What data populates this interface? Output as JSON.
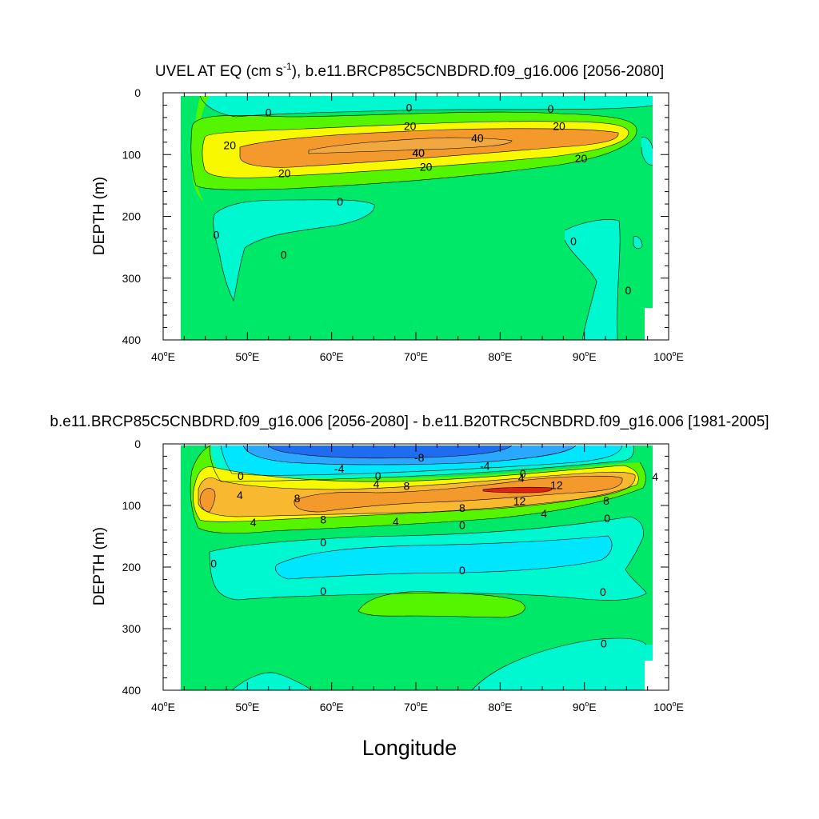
{
  "chart_data": [
    {
      "type": "contour",
      "title_main": "UVEL AT EQ (cm s",
      "title_sup": "-1",
      "title_rest": "), b.e11.BRCP85C5CNBDRD.f09_g16.006 [2056-2080]",
      "ylabel": "DEPTH (m)",
      "xlabel": "",
      "xlim": [
        40,
        100
      ],
      "ylim": [
        0,
        400
      ],
      "x_ticks": [
        40,
        50,
        60,
        70,
        80,
        90,
        100
      ],
      "x_tick_labels": [
        "40",
        "50",
        "60",
        "70",
        "80",
        "90",
        "100"
      ],
      "y_ticks": [
        0,
        100,
        200,
        300,
        400
      ],
      "y_tick_labels": [
        "0",
        "100",
        "200",
        "300",
        "400"
      ],
      "contour_labels": [
        {
          "text": "0",
          "lon": 52.5,
          "depth": 32
        },
        {
          "text": "0",
          "lon": 69.2,
          "depth": 24
        },
        {
          "text": "0",
          "lon": 86.0,
          "depth": 26
        },
        {
          "text": "20",
          "lon": 69.3,
          "depth": 54
        },
        {
          "text": "20",
          "lon": 87.0,
          "depth": 54
        },
        {
          "text": "20",
          "lon": 47.9,
          "depth": 85
        },
        {
          "text": "40",
          "lon": 77.3,
          "depth": 73
        },
        {
          "text": "40",
          "lon": 70.3,
          "depth": 97
        },
        {
          "text": "40",
          "lon": 70.3,
          "depth": 97
        },
        {
          "text": "20",
          "lon": 89.6,
          "depth": 106
        },
        {
          "text": "20",
          "lon": 71.2,
          "depth": 120
        },
        {
          "text": "20",
          "lon": 54.4,
          "depth": 130
        },
        {
          "text": "0",
          "lon": 61.0,
          "depth": 176
        },
        {
          "text": "0",
          "lon": 46.3,
          "depth": 230
        },
        {
          "text": "0",
          "lon": 54.3,
          "depth": 262
        },
        {
          "text": "0",
          "lon": 88.7,
          "depth": 240
        },
        {
          "text": "0",
          "lon": 95.2,
          "depth": 320
        }
      ]
    },
    {
      "type": "contour",
      "title": "b.e11.BRCP85C5CNBDRD.f09_g16.006 [2056-2080] - b.e11.B20TRC5CNBDRD.f09_g16.006 [1981-2005]",
      "ylabel": "DEPTH (m)",
      "xlabel": "Longitude",
      "xlim": [
        40,
        100
      ],
      "ylim": [
        0,
        400
      ],
      "x_ticks": [
        40,
        50,
        60,
        70,
        80,
        90,
        100
      ],
      "x_tick_labels": [
        "40",
        "50",
        "60",
        "70",
        "80",
        "90",
        "100"
      ],
      "y_ticks": [
        0,
        100,
        200,
        300,
        400
      ],
      "y_tick_labels": [
        "0",
        "100",
        "200",
        "300",
        "400"
      ],
      "contour_labels": [
        {
          "text": "-8",
          "lon": 70.4,
          "depth": 22
        },
        {
          "text": "-4",
          "lon": 60.9,
          "depth": 40
        },
        {
          "text": "-4",
          "lon": 78.2,
          "depth": 36
        },
        {
          "text": "0",
          "lon": 49.2,
          "depth": 52
        },
        {
          "text": "0",
          "lon": 65.5,
          "depth": 52
        },
        {
          "text": "0",
          "lon": 82.7,
          "depth": 48
        },
        {
          "text": "4",
          "lon": 65.3,
          "depth": 65
        },
        {
          "text": "4",
          "lon": 82.5,
          "depth": 55
        },
        {
          "text": "4",
          "lon": 98.4,
          "depth": 53
        },
        {
          "text": "4",
          "lon": 49.1,
          "depth": 83
        },
        {
          "text": "8",
          "lon": 68.9,
          "depth": 68
        },
        {
          "text": "8",
          "lon": 55.9,
          "depth": 88
        },
        {
          "text": "12",
          "lon": 86.7,
          "depth": 67
        },
        {
          "text": "12",
          "lon": 82.3,
          "depth": 93
        },
        {
          "text": "8",
          "lon": 75.5,
          "depth": 104
        },
        {
          "text": "8",
          "lon": 92.6,
          "depth": 92
        },
        {
          "text": "4",
          "lon": 50.7,
          "depth": 127
        },
        {
          "text": "8",
          "lon": 59.0,
          "depth": 123
        },
        {
          "text": "4",
          "lon": 67.6,
          "depth": 126
        },
        {
          "text": "4",
          "lon": 85.2,
          "depth": 113
        },
        {
          "text": "0",
          "lon": 92.7,
          "depth": 121
        },
        {
          "text": "0",
          "lon": 75.5,
          "depth": 132
        },
        {
          "text": "0",
          "lon": 59.0,
          "depth": 160
        },
        {
          "text": "0",
          "lon": 46.0,
          "depth": 194
        },
        {
          "text": "0",
          "lon": 75.5,
          "depth": 205
        },
        {
          "text": "0",
          "lon": 59.0,
          "depth": 239
        },
        {
          "text": "0",
          "lon": 92.2,
          "depth": 240
        },
        {
          "text": "0",
          "lon": 92.3,
          "depth": 324
        }
      ]
    }
  ],
  "xlabel_bottom": "Longitude",
  "colors": {
    "neg_12": "#1f6cf0",
    "neg_8": "#2aa8ff",
    "neg_4": "#00e6ff",
    "zero_neg": "#00f8d0",
    "pos_0": "#00e868",
    "pos_4": "#55f500",
    "pos_8": "#f8f800",
    "pos_12": "#f8b830",
    "pos_16": "#f49a2c",
    "pos_40": "#f2a840",
    "pos_top": "#e02010"
  }
}
